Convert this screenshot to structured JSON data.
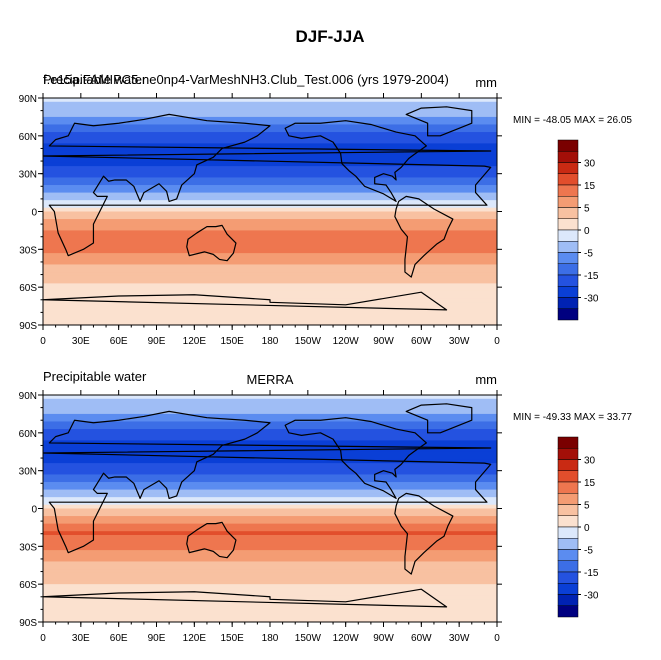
{
  "figure": {
    "title": "DJF-JJA"
  },
  "chart_data": [
    {
      "type": "heatmap",
      "variable": "Precipitable water",
      "left_title": "Precipitable water",
      "center_title": "f.e15a.FAMIPC5.ne0np4-VarMeshNH3.Club_Test.006 (yrs 1979-2004)",
      "units": "mm",
      "stats": "MIN = -48.05 MAX =  26.05",
      "min": -48.05,
      "max": 26.05,
      "xlim": [
        0,
        360
      ],
      "ylim": [
        -90,
        90
      ],
      "xticks": [
        "0",
        "30E",
        "60E",
        "90E",
        "120E",
        "150E",
        "180",
        "150W",
        "120W",
        "90W",
        "60W",
        "30W",
        "0"
      ],
      "yticks": [
        "90N",
        "60N",
        "30N",
        "0",
        "30S",
        "60S",
        "90S"
      ],
      "contour_levels": [
        -35,
        -30,
        -25,
        -20,
        -15,
        -10,
        -5,
        0,
        5,
        10,
        15,
        20,
        25,
        30,
        35
      ],
      "colorbar_labels": [
        "30",
        "15",
        "5",
        "0",
        "-5",
        "-15",
        "-30"
      ],
      "zonal_mean_mm": [
        [
          90,
          -3
        ],
        [
          75,
          -10
        ],
        [
          60,
          -22
        ],
        [
          45,
          -28
        ],
        [
          30,
          -22
        ],
        [
          15,
          -10
        ],
        [
          5,
          -2
        ],
        [
          0,
          5
        ],
        [
          -10,
          12
        ],
        [
          -20,
          20
        ],
        [
          -30,
          16
        ],
        [
          -45,
          8
        ],
        [
          -60,
          4
        ],
        [
          -75,
          2
        ],
        [
          -90,
          1
        ]
      ]
    },
    {
      "type": "heatmap",
      "variable": "Precipitable water",
      "left_title": "Precipitable water",
      "center_title": "MERRA",
      "units": "mm",
      "stats": "MIN = -49.33 MAX =  33.77",
      "min": -49.33,
      "max": 33.77,
      "xlim": [
        0,
        360
      ],
      "ylim": [
        -90,
        90
      ],
      "xticks": [
        "0",
        "30E",
        "60E",
        "90E",
        "120E",
        "150E",
        "180",
        "150W",
        "120W",
        "90W",
        "60W",
        "30W",
        "0"
      ],
      "yticks": [
        "90N",
        "60N",
        "30N",
        "0",
        "30S",
        "60S",
        "90S"
      ],
      "contour_levels": [
        -35,
        -30,
        -25,
        -20,
        -15,
        -10,
        -5,
        0,
        5,
        10,
        15,
        20,
        25,
        30,
        35
      ],
      "colorbar_labels": [
        "30",
        "15",
        "5",
        "0",
        "-5",
        "-15",
        "-30"
      ],
      "zonal_mean_mm": [
        [
          90,
          -3
        ],
        [
          75,
          -10
        ],
        [
          60,
          -22
        ],
        [
          45,
          -29
        ],
        [
          30,
          -23
        ],
        [
          15,
          -10
        ],
        [
          5,
          -1
        ],
        [
          0,
          5
        ],
        [
          -10,
          13
        ],
        [
          -20,
          21
        ],
        [
          -30,
          17
        ],
        [
          -45,
          9
        ],
        [
          -60,
          5
        ],
        [
          -75,
          2
        ],
        [
          -90,
          1
        ]
      ]
    }
  ],
  "colors": {
    "palette": [
      "#000080",
      "#0022b3",
      "#0a3fd6",
      "#2452e0",
      "#3c6ee6",
      "#5b8cf0",
      "#9fbdf5",
      "#dce8fb",
      "#fbe1cf",
      "#f8c1a1",
      "#f49c73",
      "#ee764f",
      "#e24e2c",
      "#c92a13",
      "#a30f08",
      "#7a0000"
    ]
  }
}
